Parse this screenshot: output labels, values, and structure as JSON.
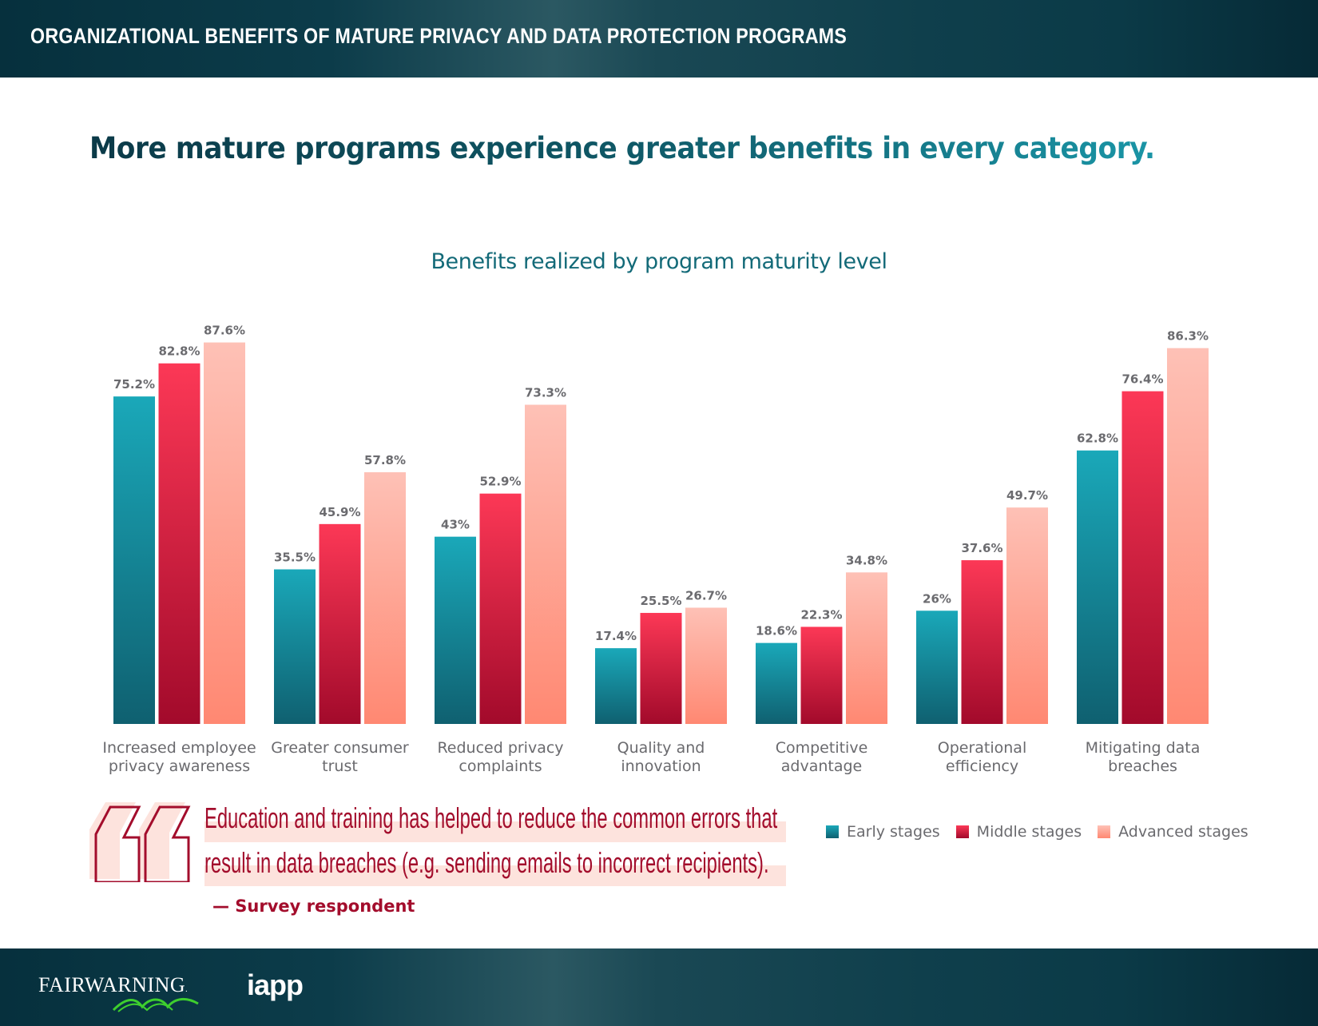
{
  "header": {
    "title": "ORGANIZATIONAL BENEFITS OF MATURE PRIVACY AND DATA PROTECTION PROGRAMS"
  },
  "headline": "More mature programs experience greater benefits in every category.",
  "chart_data": {
    "type": "bar",
    "title": "Benefits realized by program maturity level",
    "xlabel": "",
    "ylabel": "",
    "ylim": [
      0,
      100
    ],
    "grid": false,
    "legend_position": "bottom-right",
    "unit": "%",
    "categories": [
      [
        "Increased employee",
        "privacy awareness"
      ],
      [
        "Greater consumer",
        "trust"
      ],
      [
        "Reduced privacy",
        "complaints"
      ],
      [
        "Quality and",
        "innovation"
      ],
      [
        "Competitive",
        "advantage"
      ],
      [
        "Operational",
        "efficiency"
      ],
      [
        "Mitigating data",
        "breaches"
      ]
    ],
    "series": [
      {
        "name": "Early stages",
        "values": [
          75.2,
          35.5,
          43,
          17.4,
          18.6,
          26,
          62.8
        ],
        "labels": [
          "75.2%",
          "35.5%",
          "43%",
          "17.4%",
          "18.6%",
          "26%",
          "62.8%"
        ],
        "color_top": "#1aa8b9",
        "color_bottom": "#0f6070"
      },
      {
        "name": "Middle stages",
        "values": [
          82.8,
          45.9,
          52.9,
          25.5,
          22.3,
          37.6,
          76.4
        ],
        "labels": [
          "82.8%",
          "45.9%",
          "52.9%",
          "25.5%",
          "22.3%",
          "37.6%",
          "76.4%"
        ],
        "color_top": "#fc3856",
        "color_bottom": "#a20a2b"
      },
      {
        "name": "Advanced stages",
        "values": [
          87.6,
          57.8,
          73.3,
          26.7,
          34.8,
          49.7,
          86.3
        ],
        "labels": [
          "87.6%",
          "57.8%",
          "73.3%",
          "26.7%",
          "34.8%",
          "49.7%",
          "86.3%"
        ],
        "color_top": "#fec1b6",
        "color_bottom": "#ff8872"
      }
    ]
  },
  "quote": {
    "lines": [
      "Education and training has helped to reduce the common errors that",
      "result in data breaches (e.g. sending emails to incorrect recipients)."
    ],
    "attribution": "— Survey respondent",
    "icon": "quote-mark-icon"
  },
  "legend": [
    {
      "label": "Early stages"
    },
    {
      "label": "Middle stages"
    },
    {
      "label": "Advanced stages"
    }
  ],
  "footer": {
    "logos": [
      {
        "name": "FAIRWARNING",
        "suffix": "."
      },
      {
        "name": "iapp"
      }
    ]
  }
}
